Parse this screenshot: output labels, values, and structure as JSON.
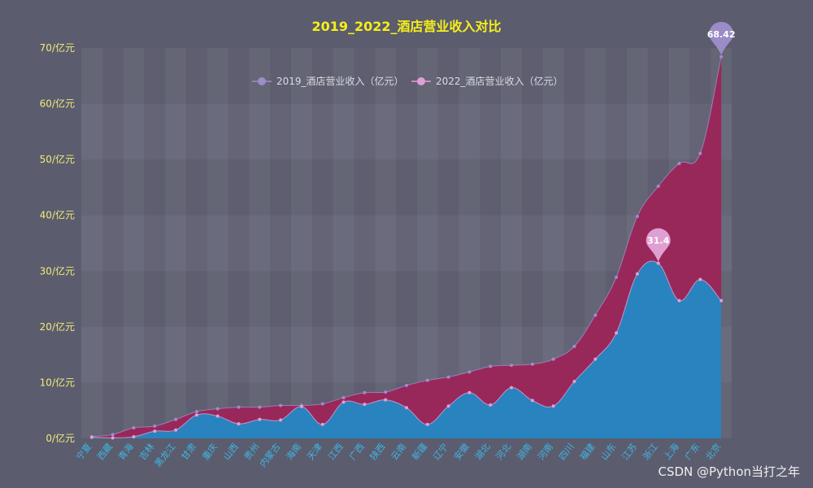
{
  "chart_data": {
    "type": "area",
    "title": "2019_2022_酒店营业收入对比",
    "ylim": [
      0,
      70
    ],
    "y_ticks": [
      "0/亿元",
      "10/亿元",
      "20/亿元",
      "30/亿元",
      "40/亿元",
      "50/亿元",
      "60/亿元",
      "70/亿元"
    ],
    "y_tick_values": [
      0,
      10,
      20,
      30,
      40,
      50,
      60,
      70
    ],
    "grid": "alternating bands",
    "legend_position": "top-center",
    "categories": [
      "宁夏",
      "西藏",
      "青海",
      "吉林",
      "黑龙江",
      "甘肃",
      "重庆",
      "山西",
      "贵州",
      "内蒙古",
      "海南",
      "天津",
      "江西",
      "广西",
      "陕西",
      "云南",
      "新疆",
      "辽宁",
      "安徽",
      "湖北",
      "河北",
      "湖南",
      "河南",
      "四川",
      "福建",
      "山东",
      "江苏",
      "浙江",
      "上海",
      "广东",
      "北京"
    ],
    "series": [
      {
        "name": "2019_酒店营业收入（亿元）",
        "color": "#9b2558",
        "marker_color": "#a08cc8",
        "values": [
          0.3,
          0.7,
          1.9,
          2.2,
          3.4,
          4.8,
          5.3,
          5.6,
          5.6,
          5.9,
          5.9,
          6.2,
          7.3,
          8.2,
          8.3,
          9.5,
          10.4,
          11.0,
          11.9,
          12.9,
          13.1,
          13.3,
          14.2,
          16.5,
          22.1,
          28.9,
          39.8,
          45.2,
          49.3,
          51.1,
          68.42
        ]
      },
      {
        "name": "2022_酒店营业收入（亿元）",
        "color": "#2288c4",
        "marker_color": "#e0a0d6",
        "values": [
          0.2,
          0.1,
          0.3,
          1.3,
          1.5,
          4.2,
          4.0,
          2.6,
          3.4,
          3.3,
          5.7,
          2.5,
          6.5,
          6.1,
          6.9,
          5.5,
          2.5,
          5.8,
          8.2,
          6.0,
          9.1,
          6.8,
          5.8,
          10.2,
          14.2,
          18.9,
          29.5,
          31.4,
          24.7,
          28.5,
          24.7
        ]
      }
    ],
    "annotations": [
      {
        "series": 0,
        "category": "北京",
        "label": "68.42"
      },
      {
        "series": 1,
        "category": "浙江",
        "label": "31.4"
      }
    ]
  },
  "colors": {
    "title": "#f5ef1a",
    "y_tick": "#f1ec7a",
    "x_tick": "#3fb7e6",
    "legend_text": "#dcdce4",
    "pin_1": "#9b8bc6",
    "pin_2": "#e09fd2",
    "watermark": "#eeeeee"
  },
  "watermark": "CSDN @Python当打之年"
}
